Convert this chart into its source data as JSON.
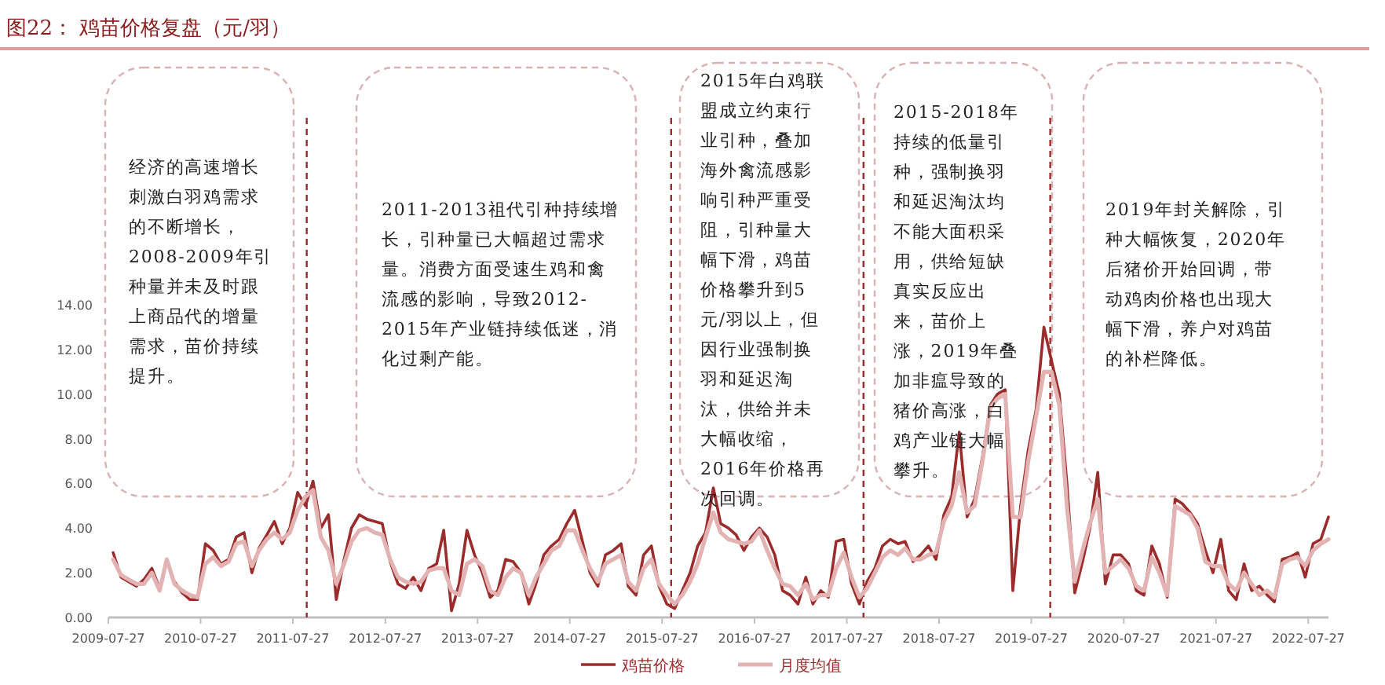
{
  "chart_data": {
    "type": "line",
    "title": "图22：  鸡苗价格复盘（元/羽）",
    "annotations": [
      "经济的高速增长刺激白羽鸡需求的不断增长，2008-2009年引种量并未及时跟上商品代的增量需求，苗价持续提升。",
      "2011-2013祖代引种持续增长，引种量已大幅超过需求量。消费方面受速生鸡和禽流感的影响，导致2012-2015年产业链持续低迷，消化过剩产能。",
      "2015年白鸡联盟成立约束行业引种，叠加海外禽流感影响引种严重受阻，引种量大幅下滑，鸡苗价格攀升到5元/羽以上，但因行业强制换羽和延迟淘汰，供给并未大幅收缩，2016年价格再次回调。",
      "2015-2018年持续的低量引种，强制换羽和延迟淘汰均不能大面积采用，供给短缺真实反应出来，苗价上涨，2019年叠加非瘟导致的猪价高涨，白鸡产业链大幅攀升。",
      "2019年封关解除，引种大幅恢复，2020年后猪价开始回调，带动鸡肉价格也出现大幅下滑，养户对鸡苗的补栏降低。"
    ],
    "x": [
      "2009-08",
      "2009-09",
      "2009-10",
      "2009-11",
      "2009-12",
      "2010-01",
      "2010-02",
      "2010-03",
      "2010-04",
      "2010-05",
      "2010-06",
      "2010-07",
      "2010-08",
      "2010-09",
      "2010-10",
      "2010-11",
      "2010-12",
      "2011-01",
      "2011-02",
      "2011-03",
      "2011-04",
      "2011-05",
      "2011-06",
      "2011-07",
      "2011-08",
      "2011-09",
      "2011-10",
      "2011-11",
      "2011-12",
      "2012-01",
      "2012-02",
      "2012-03",
      "2012-04",
      "2012-05",
      "2012-06",
      "2012-07",
      "2012-08",
      "2012-09",
      "2012-10",
      "2012-11",
      "2012-12",
      "2013-01",
      "2013-02",
      "2013-03",
      "2013-04",
      "2013-05",
      "2013-06",
      "2013-07",
      "2013-08",
      "2013-09",
      "2013-10",
      "2013-11",
      "2013-12",
      "2014-01",
      "2014-02",
      "2014-03",
      "2014-04",
      "2014-05",
      "2014-06",
      "2014-07",
      "2014-08",
      "2014-09",
      "2014-10",
      "2014-11",
      "2014-12",
      "2015-01",
      "2015-02",
      "2015-03",
      "2015-04",
      "2015-05",
      "2015-06",
      "2015-07",
      "2015-08",
      "2015-09",
      "2015-10",
      "2015-11",
      "2015-12",
      "2016-01",
      "2016-02",
      "2016-03",
      "2016-04",
      "2016-05",
      "2016-06",
      "2016-07",
      "2016-08",
      "2016-09",
      "2016-10",
      "2016-11",
      "2016-12",
      "2017-01",
      "2017-02",
      "2017-03",
      "2017-04",
      "2017-05",
      "2017-06",
      "2017-07",
      "2017-08",
      "2017-09",
      "2017-10",
      "2017-11",
      "2017-12",
      "2018-01",
      "2018-02",
      "2018-03",
      "2018-04",
      "2018-05",
      "2018-06",
      "2018-07",
      "2018-08",
      "2018-09",
      "2018-10",
      "2018-11",
      "2018-12",
      "2019-01",
      "2019-02",
      "2019-03",
      "2019-04",
      "2019-05",
      "2019-06",
      "2019-07",
      "2019-08",
      "2019-09",
      "2019-10",
      "2019-11",
      "2019-12",
      "2020-01",
      "2020-02",
      "2020-03",
      "2020-04",
      "2020-05",
      "2020-06",
      "2020-07",
      "2020-08",
      "2020-09",
      "2020-10",
      "2020-11",
      "2020-12",
      "2021-01",
      "2021-02",
      "2021-03",
      "2021-04",
      "2021-05",
      "2021-06",
      "2021-07",
      "2021-08",
      "2021-09",
      "2021-10",
      "2021-11",
      "2021-12",
      "2022-01",
      "2022-02",
      "2022-03",
      "2022-04",
      "2022-05",
      "2022-06",
      "2022-07",
      "2022-08",
      "2022-09",
      "2022-10"
    ],
    "series": [
      {
        "name": "鸡苗价格",
        "color": "#9c2b2b",
        "values": [
          2.9,
          1.8,
          1.6,
          1.4,
          1.7,
          2.2,
          1.3,
          null,
          1.6,
          1.1,
          0.8,
          0.8,
          3.3,
          3.0,
          2.4,
          2.6,
          3.6,
          3.8,
          2.0,
          3.1,
          3.7,
          4.3,
          3.3,
          4.0,
          5.6,
          5.0,
          6.1,
          4.0,
          4.6,
          0.8,
          2.6,
          4.0,
          4.6,
          4.4,
          4.3,
          4.2,
          2.5,
          1.5,
          1.3,
          1.8,
          1.2,
          2.2,
          2.4,
          3.9,
          0.3,
          1.5,
          3.9,
          2.8,
          2.0,
          0.9,
          1.2,
          2.6,
          2.5,
          2.0,
          0.6,
          1.5,
          2.8,
          3.2,
          3.5,
          4.2,
          4.8,
          3.4,
          2.0,
          1.4,
          2.8,
          3.0,
          3.3,
          1.4,
          1.0,
          2.8,
          3.2,
          1.4,
          0.6,
          0.4,
          1.2,
          2.0,
          3.2,
          3.8,
          5.8,
          4.2,
          4.0,
          3.7,
          3.0,
          3.6,
          4.0,
          3.6,
          2.8,
          1.2,
          1.0,
          0.6,
          1.8,
          0.6,
          1.2,
          0.9,
          3.4,
          3.5,
          1.5,
          0.6,
          1.6,
          2.2,
          3.2,
          3.5,
          3.3,
          3.4,
          2.5,
          2.8,
          3.2,
          2.6,
          4.6,
          5.4,
          8.3,
          4.5,
          5.3,
          7.2,
          9.5,
          10.0,
          10.2,
          1.2,
          5.0,
          7.5,
          9.3,
          13.0,
          11.5,
          10.0,
          6.0,
          1.1,
          2.5,
          4.0,
          6.5,
          1.5,
          2.8,
          2.8,
          2.4,
          1.2,
          1.0,
          3.2,
          2.4,
          0.9,
          5.3,
          5.1,
          4.7,
          4.2,
          3.0,
          2.0,
          3.5,
          1.2,
          0.8,
          2.4,
          1.2,
          1.4,
          1.0,
          0.7,
          2.6,
          2.7,
          2.9,
          1.8,
          3.3,
          3.5,
          4.5
        ]
      },
      {
        "name": "月度均值",
        "color": "#e3b3b3",
        "values": [
          2.6,
          1.9,
          1.7,
          1.5,
          1.5,
          2.0,
          1.2,
          2.6,
          1.5,
          1.2,
          1.0,
          0.9,
          2.4,
          2.7,
          2.3,
          2.5,
          3.3,
          3.4,
          2.3,
          3.0,
          3.5,
          3.8,
          3.5,
          3.8,
          4.8,
          5.4,
          5.7,
          3.6,
          3.0,
          1.5,
          2.4,
          3.4,
          3.9,
          4.0,
          3.8,
          3.7,
          2.6,
          1.8,
          1.6,
          1.5,
          1.6,
          2.1,
          2.2,
          2.2,
          1.2,
          1.0,
          2.4,
          2.6,
          2.3,
          1.2,
          1.0,
          1.8,
          2.2,
          2.0,
          1.0,
          1.8,
          2.4,
          3.0,
          3.2,
          3.9,
          3.9,
          3.0,
          2.2,
          1.6,
          2.4,
          2.6,
          2.8,
          1.6,
          1.2,
          2.2,
          2.6,
          1.5,
          1.0,
          0.6,
          1.0,
          1.6,
          2.4,
          3.6,
          4.7,
          3.8,
          3.5,
          3.4,
          3.3,
          3.4,
          3.9,
          3.0,
          2.2,
          1.5,
          1.4,
          1.0,
          1.5,
          0.8,
          1.0,
          1.0,
          2.2,
          2.9,
          1.8,
          0.9,
          1.3,
          2.0,
          2.7,
          3.0,
          2.8,
          3.1,
          2.6,
          2.6,
          2.8,
          2.9,
          4.3,
          5.0,
          6.5,
          4.7,
          5.0,
          7.0,
          9.4,
          9.8,
          10.0,
          4.5,
          4.5,
          7.0,
          9.0,
          11.0,
          11.0,
          9.5,
          5.0,
          1.6,
          3.0,
          4.2,
          5.3,
          2.0,
          2.3,
          2.6,
          2.2,
          1.4,
          1.2,
          2.7,
          2.0,
          1.0,
          5.0,
          4.8,
          4.6,
          4.0,
          2.5,
          2.3,
          2.3,
          1.5,
          1.2,
          2.0,
          1.5,
          1.0,
          1.2,
          0.9,
          2.4,
          2.6,
          2.7,
          2.3,
          3.0,
          3.3,
          3.5
        ]
      }
    ],
    "xlim": [
      "2009-07-27",
      "2022-10-15"
    ],
    "xticks": [
      "2009-07-27",
      "2010-07-27",
      "2011-07-27",
      "2012-07-27",
      "2013-07-27",
      "2014-07-27",
      "2015-07-27",
      "2016-07-27",
      "2017-07-27",
      "2018-07-27",
      "2019-07-27",
      "2020-07-27",
      "2021-07-27",
      "2022-07-27"
    ],
    "ylim": [
      0,
      14
    ],
    "yticks": [
      {
        "value": 0,
        "label": "0.00"
      },
      {
        "value": 2,
        "label": "2.00"
      },
      {
        "value": 4,
        "label": "4.00"
      },
      {
        "value": 6,
        "label": "6.00"
      },
      {
        "value": 8,
        "label": "8.00"
      },
      {
        "value": 10,
        "label": "10.00"
      },
      {
        "value": 12,
        "label": "12.00"
      },
      {
        "value": 14,
        "label": "14.00"
      }
    ],
    "ref_lines": [
      {
        "axis": "x",
        "value": "2011-09-20",
        "color": "#9c2b2b",
        "line_style": "dashed"
      },
      {
        "axis": "x",
        "value": "2015-09-01",
        "color": "#9c2b2b",
        "line_style": "dashed"
      },
      {
        "axis": "x",
        "value": "2017-10-01",
        "color": "#9c2b2b",
        "line_style": "dashed"
      },
      {
        "axis": "x",
        "value": "2019-10-10",
        "color": "#9c2b2b",
        "line_style": "dashed"
      }
    ],
    "legend": "bottom",
    "grid": false,
    "marker": "none",
    "line_style": "solid"
  }
}
